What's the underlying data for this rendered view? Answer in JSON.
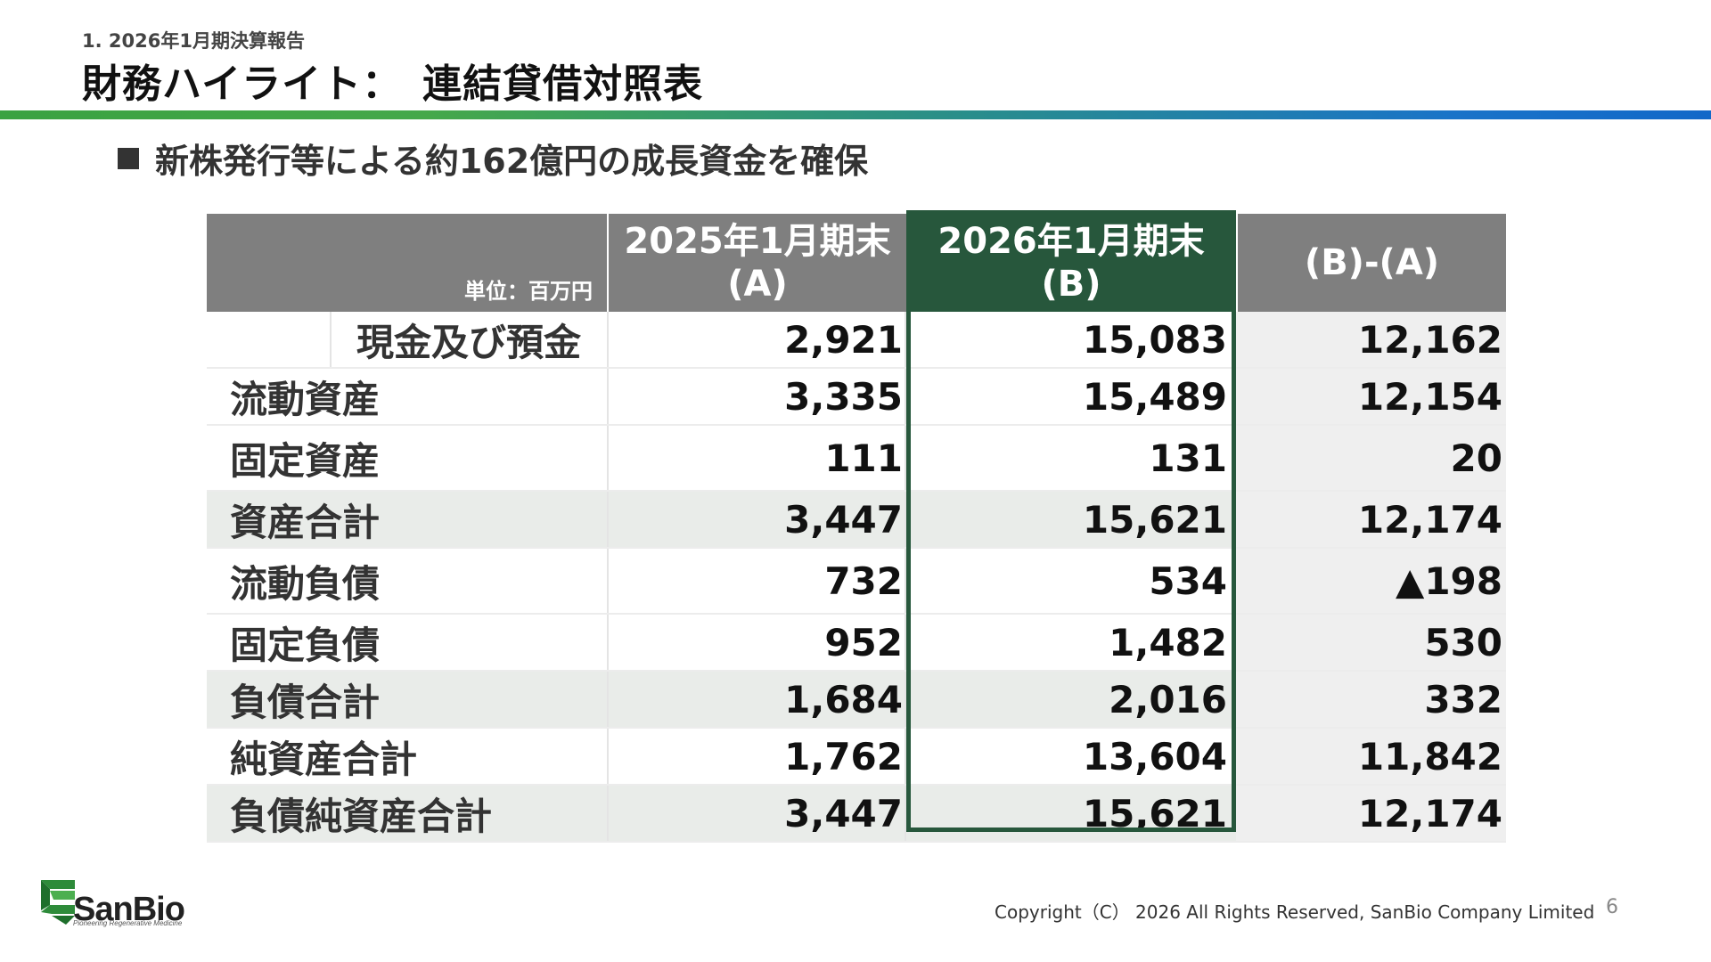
{
  "header": {
    "section": "1. 2026年1月期決算報告",
    "title": "財務ハイライト：　連結貸借対照表"
  },
  "bullet": {
    "text": "新株発行等による約162億円の成長資金を確保"
  },
  "table": {
    "unit_label": "単位：百万円",
    "columns": {
      "a_line1": "2025年1月期末",
      "a_line2": "(A)",
      "b_line1": "2026年1月期末",
      "b_line2": "(B)",
      "diff": "(B)-(A)"
    },
    "rows": [
      {
        "label": "現金及び預金",
        "a": "2,921",
        "b": "15,083",
        "diff": "12,162"
      },
      {
        "label": "流動資産",
        "a": "3,335",
        "b": "15,489",
        "diff": "12,154"
      },
      {
        "label": "固定資産",
        "a": "111",
        "b": "131",
        "diff": "20"
      },
      {
        "label": "資産合計",
        "a": "3,447",
        "b": "15,621",
        "diff": "12,174"
      },
      {
        "label": "流動負債",
        "a": "732",
        "b": "534",
        "diff": "▲198"
      },
      {
        "label": "固定負債",
        "a": "952",
        "b": "1,482",
        "diff": "530"
      },
      {
        "label": "負債合計",
        "a": "1,684",
        "b": "2,016",
        "diff": "332"
      },
      {
        "label": "純資産合計",
        "a": "1,762",
        "b": "13,604",
        "diff": "11,842"
      },
      {
        "label": "負債純資産合計",
        "a": "3,447",
        "b": "15,621",
        "diff": "12,174"
      }
    ]
  },
  "footer": {
    "logo_text": "SanBio",
    "logo_tagline": "Pioneering Regenerative Medicine",
    "copyright": "Copyright（C） 2026 All Rights Reserved, SanBio Company Limited",
    "page_number": "6"
  },
  "colors": {
    "accent_green": "#27573c",
    "header_gray": "#7f7f7f",
    "rule_start": "#3aa241",
    "rule_end": "#1268c8"
  }
}
